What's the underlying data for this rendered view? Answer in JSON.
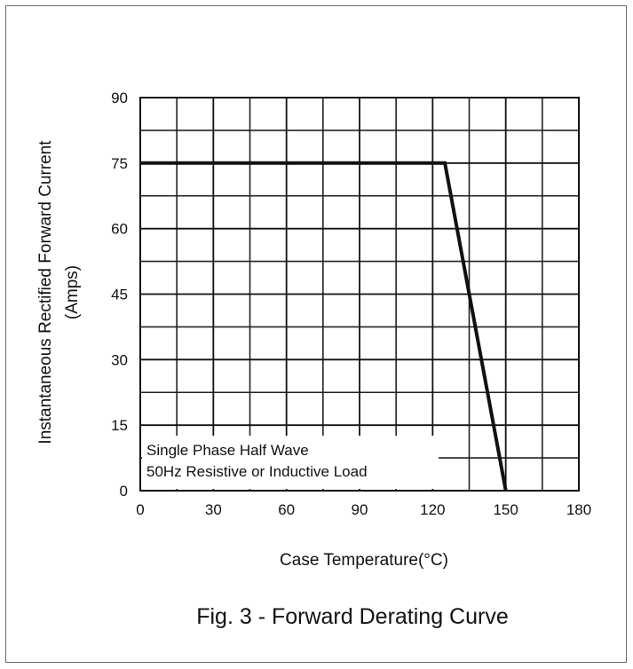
{
  "chart_data": {
    "type": "line",
    "title": "Fig. 3 - Forward Derating Curve",
    "xlabel": "Case Temperature(°C)",
    "ylabel_lines": [
      "Instantaneous Rectified Forward Current",
      "(Amps)"
    ],
    "xlim": [
      0,
      180
    ],
    "ylim": [
      0,
      90
    ],
    "x_ticks": [
      0,
      30,
      60,
      90,
      120,
      150,
      180
    ],
    "y_ticks": [
      0,
      15,
      30,
      45,
      60,
      75,
      90
    ],
    "grid": true,
    "series": [
      {
        "x": [
          0,
          125,
          150
        ],
        "y": [
          75,
          75,
          0
        ]
      }
    ],
    "annotation_lines": [
      "Single Phase Half Wave",
      "50Hz Resistive or Inductive Load"
    ]
  }
}
